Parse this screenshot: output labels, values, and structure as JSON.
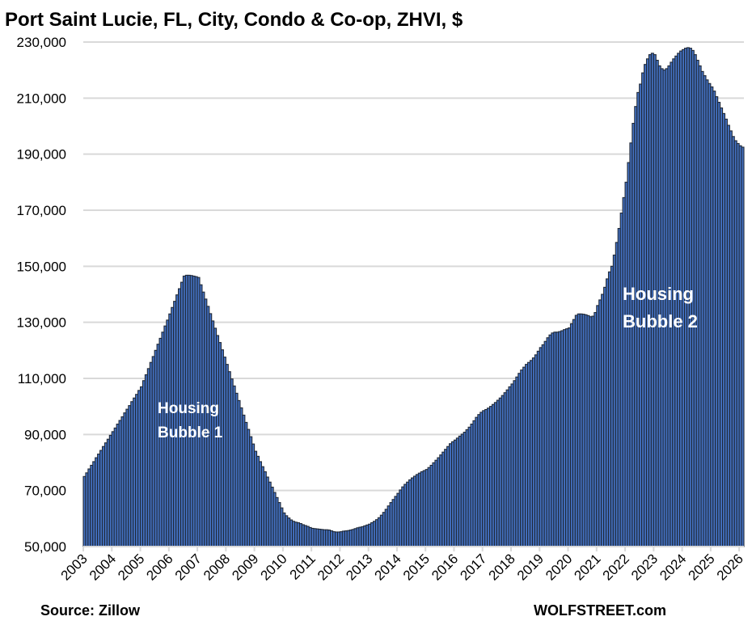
{
  "chart_data": {
    "type": "bar",
    "title": "Port Saint Lucie, FL, City, Condo & Co-op, ZHVI, $",
    "xlabel": "",
    "ylabel": "",
    "ylim": [
      50000,
      230000
    ],
    "yticks": [
      "50,000",
      "70,000",
      "90,000",
      "110,000",
      "130,000",
      "150,000",
      "170,000",
      "190,000",
      "210,000",
      "230,000"
    ],
    "ytick_values": [
      50000,
      70000,
      90000,
      110000,
      130000,
      150000,
      170000,
      190000,
      210000,
      230000
    ],
    "xticks": [
      "2003",
      "2004",
      "2005",
      "2006",
      "2007",
      "2008",
      "2009",
      "2010",
      "2011",
      "2012",
      "2013",
      "2014",
      "2015",
      "2016",
      "2017",
      "2018",
      "2019",
      "2020",
      "2021",
      "2022",
      "2023",
      "2024",
      "2025",
      "2026"
    ],
    "grid": true,
    "frequency": "monthly",
    "start": "2003-01",
    "values": [
      75000,
      76300,
      77700,
      79000,
      80300,
      81700,
      83000,
      84300,
      85700,
      87000,
      88300,
      89700,
      91000,
      92300,
      93700,
      95000,
      96300,
      97700,
      99000,
      100300,
      101700,
      103000,
      104300,
      105700,
      107000,
      109200,
      111300,
      113500,
      115700,
      117800,
      120000,
      122200,
      124300,
      126500,
      128700,
      130800,
      133000,
      135300,
      137500,
      139800,
      142000,
      144300,
      146500,
      146800,
      146800,
      146700,
      146500,
      146300,
      146000,
      143400,
      140800,
      138300,
      135700,
      133100,
      130500,
      127900,
      125300,
      122800,
      120200,
      117600,
      115000,
      112400,
      109800,
      107300,
      104700,
      102100,
      99500,
      96900,
      94300,
      91800,
      89200,
      86600,
      84000,
      82200,
      80300,
      78500,
      76700,
      74800,
      73000,
      71200,
      69300,
      67500,
      65700,
      63800,
      62000,
      61000,
      60200,
      59500,
      59000,
      58700,
      58500,
      58200,
      57800,
      57500,
      57200,
      56800,
      56500,
      56400,
      56300,
      56200,
      56100,
      56000,
      56000,
      55900,
      55600,
      55300,
      55200,
      55200,
      55300,
      55500,
      55600,
      55700,
      55900,
      56100,
      56400,
      56700,
      56900,
      57100,
      57400,
      57700,
      58000,
      58500,
      59000,
      59600,
      60300,
      61200,
      62200,
      63300,
      64500,
      65700,
      66800,
      67900,
      69000,
      70200,
      71300,
      72200,
      73000,
      73800,
      74500,
      75100,
      75700,
      76200,
      76700,
      77100,
      77500,
      78200,
      79000,
      79900,
      80800,
      81700,
      82700,
      83700,
      84700,
      85700,
      86700,
      87400,
      88000,
      88700,
      89400,
      90100,
      90800,
      91700,
      92600,
      93700,
      94900,
      96100,
      97100,
      97900,
      98500,
      98900,
      99400,
      100000,
      100700,
      101400,
      102200,
      103000,
      103900,
      104900,
      105900,
      107000,
      108000,
      109200,
      110500,
      111800,
      113000,
      114000,
      115000,
      115700,
      116400,
      117300,
      118400,
      119700,
      121000,
      122000,
      123200,
      124500,
      125500,
      126200,
      126500,
      126500,
      126700,
      127000,
      127400,
      127700,
      128000,
      129500,
      131000,
      132500,
      133000,
      133000,
      132900,
      132700,
      132400,
      132000,
      132200,
      133500,
      136000,
      138000,
      140000,
      142500,
      145500,
      148000,
      150000,
      154000,
      158500,
      163500,
      169000,
      174500,
      180000,
      187000,
      194000,
      201000,
      207000,
      212000,
      215000,
      219000,
      222000,
      224000,
      225500,
      226000,
      225500,
      223500,
      221500,
      220500,
      220000,
      220500,
      221500,
      222800,
      224000,
      225000,
      226000,
      226800,
      227300,
      227800,
      228000,
      227800,
      227000,
      225500,
      223500,
      221500,
      219500,
      218000,
      216500,
      215200,
      214000,
      212500,
      210500,
      208500,
      206500,
      204500,
      202500,
      200300,
      198300,
      196300,
      194800,
      193800,
      193000,
      192500
    ],
    "annotations": [
      {
        "lines": [
          "Housing",
          "Bubble 1"
        ],
        "near": "2007"
      },
      {
        "lines": [
          "Housing",
          "Bubble 2"
        ],
        "near": "2023"
      }
    ],
    "colors": {
      "bar": "#4472c4",
      "bar_edge": "#1f2836",
      "grid": "#d9d9d9"
    }
  },
  "footer": {
    "source": "Source: Zillow",
    "brand": "WOLFSTREET.com"
  }
}
